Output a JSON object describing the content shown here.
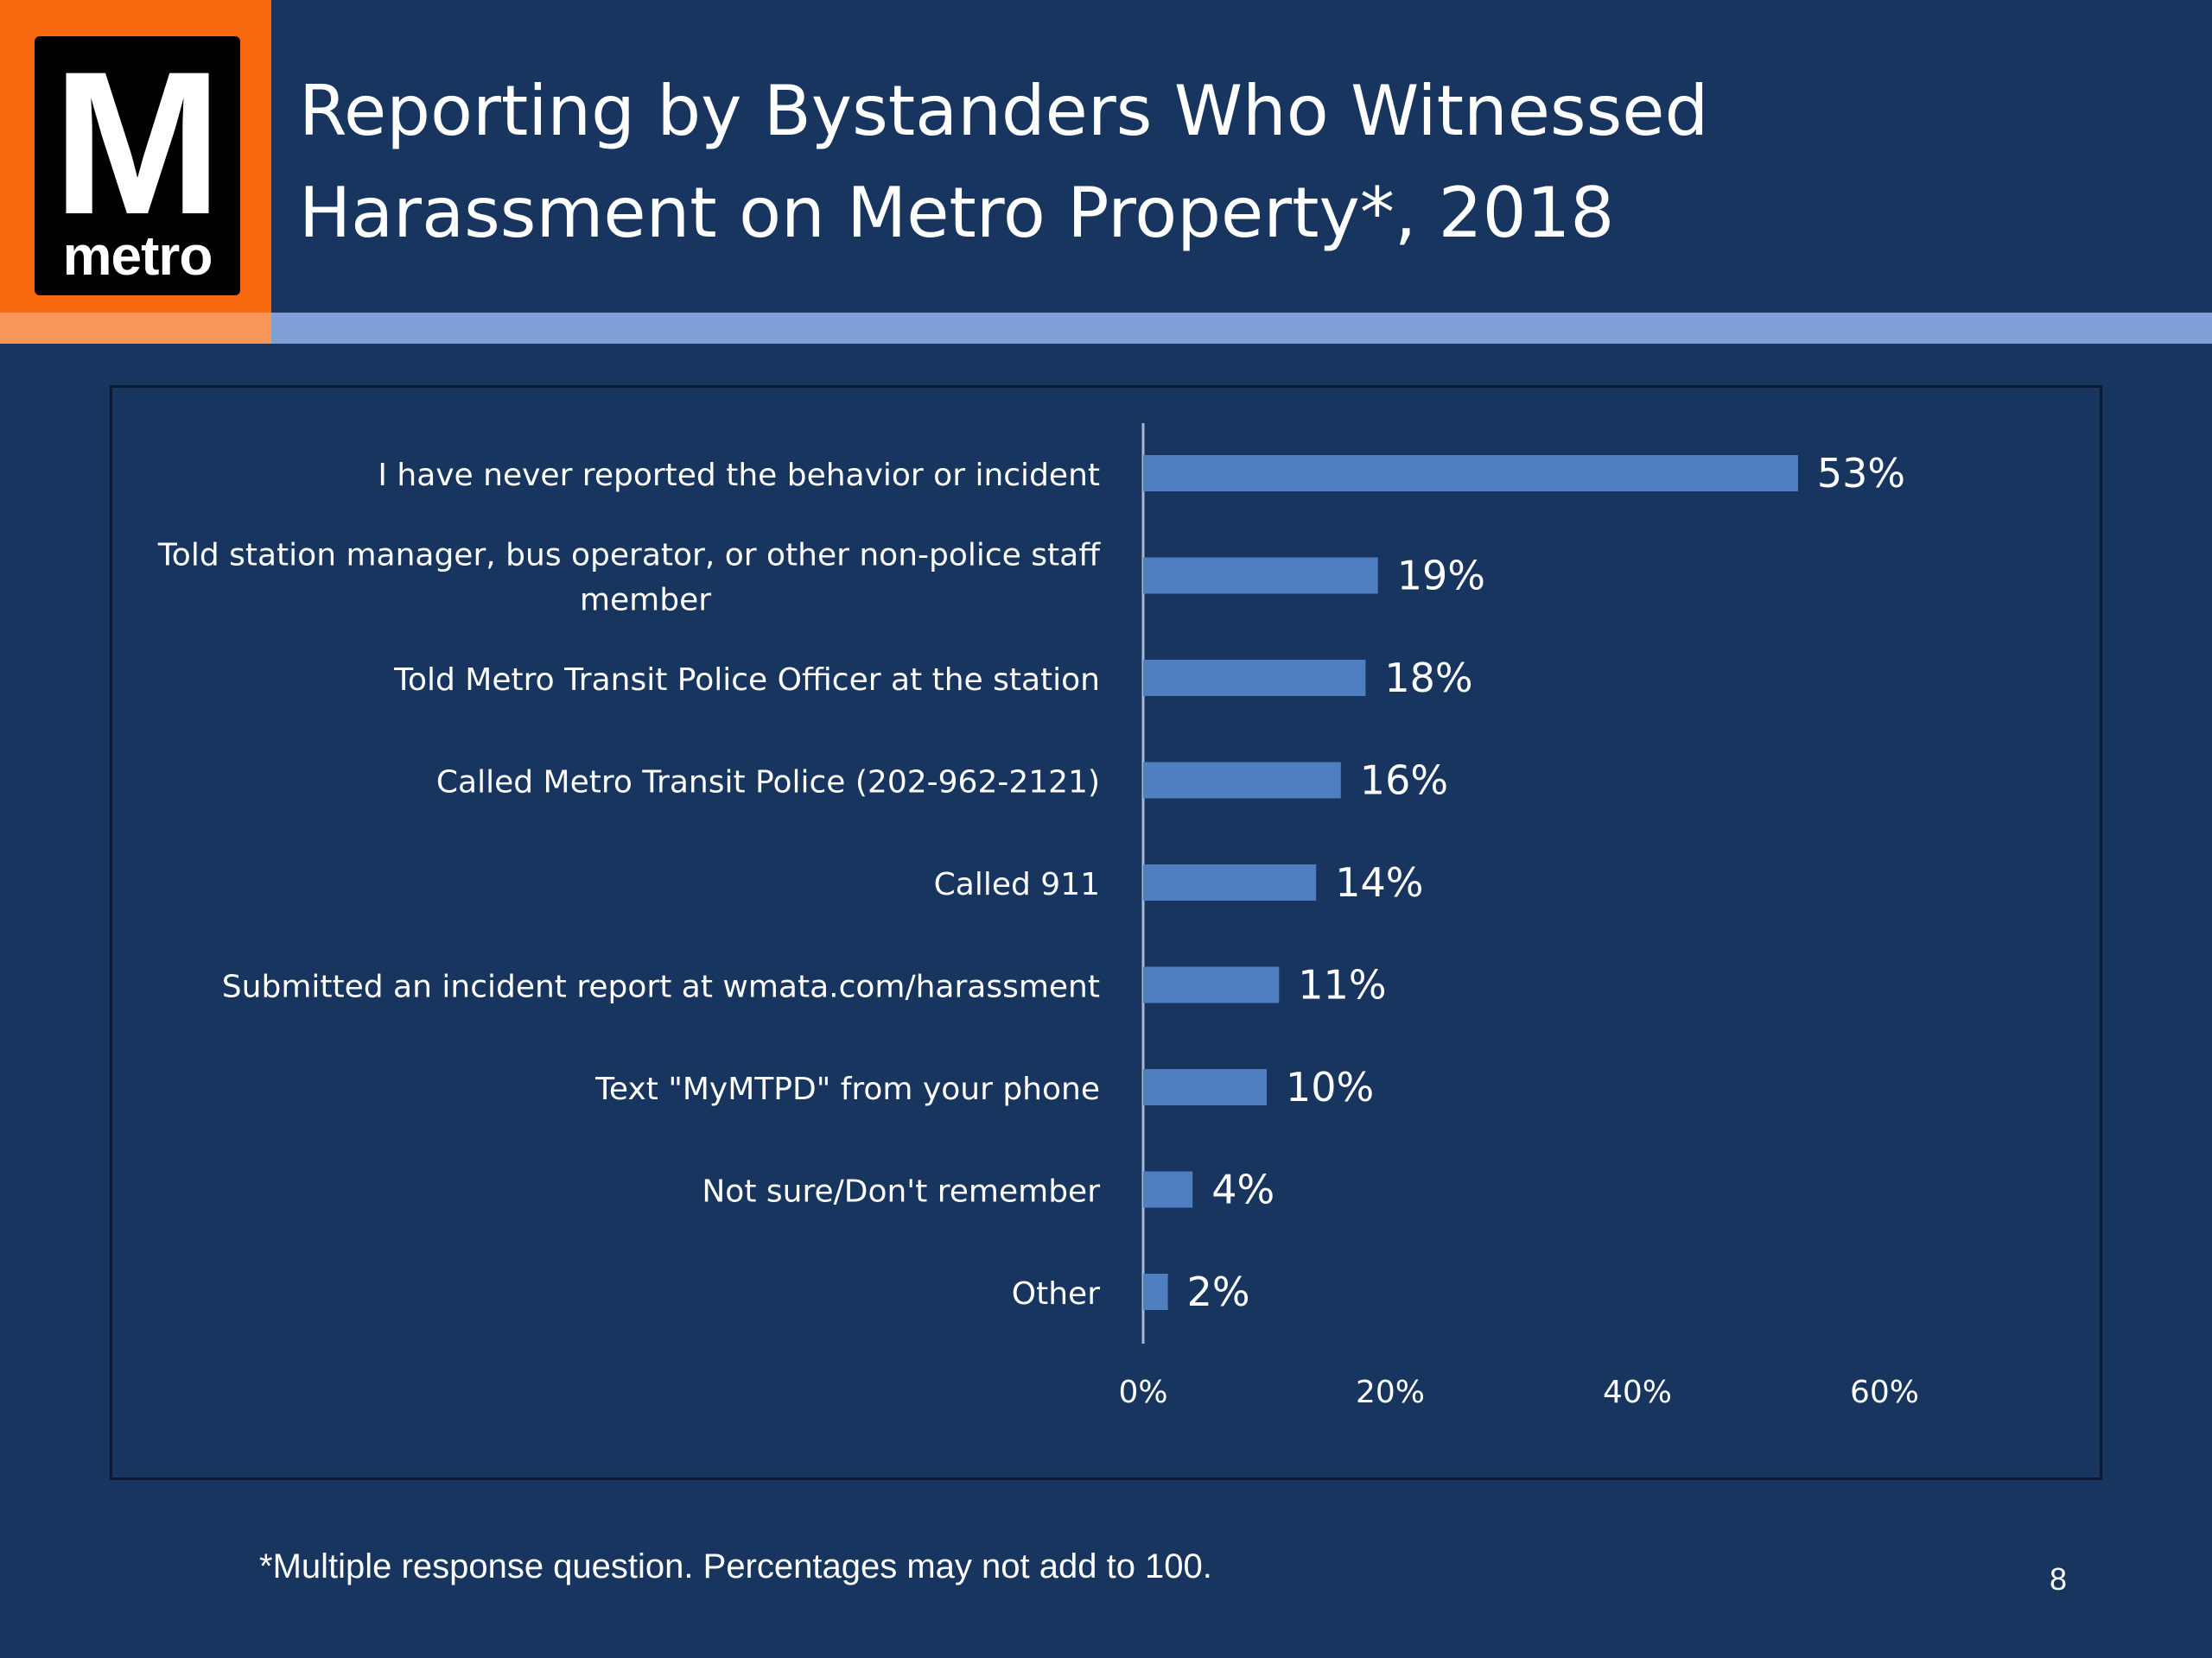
{
  "logo": {
    "letter": "M",
    "wordmark": "metro"
  },
  "slide": {
    "title_line1": "Reporting by Bystanders Who Witnessed",
    "title_line2": "Harassment on Metro Property*,  2018",
    "footnote": "*Multiple response question.  Percentages may not add to 100.",
    "page_number": "8"
  },
  "colors": {
    "background": "#17355e",
    "bar": "#4f7fc0",
    "accent_orange": "#f7680f",
    "band_blue": "#7f9fd6"
  },
  "chart_data": {
    "type": "bar",
    "orientation": "horizontal",
    "title": "",
    "categories": [
      [
        "I have never reported the behavior or incident"
      ],
      [
        "Told station manager, bus operator, or other non-police staff",
        "member"
      ],
      [
        "Told Metro Transit Police Officer at the station"
      ],
      [
        "Called Metro Transit Police (202-962-2121)"
      ],
      [
        "Called 911"
      ],
      [
        "Submitted an incident report at wmata.com/harassment"
      ],
      [
        "Text \"MyMTPD\" from your phone"
      ],
      [
        "Not sure/Don't remember"
      ],
      [
        "Other"
      ]
    ],
    "values": [
      53,
      19,
      18,
      16,
      14,
      11,
      10,
      4,
      2
    ],
    "data_labels": [
      "53%",
      "19%",
      "18%",
      "16%",
      "14%",
      "11%",
      "10%",
      "4%",
      "2%"
    ],
    "x_ticks": [
      "0%",
      "20%",
      "40%",
      "60%"
    ],
    "xlim": [
      0,
      60
    ],
    "grid": false,
    "legend": "none"
  }
}
